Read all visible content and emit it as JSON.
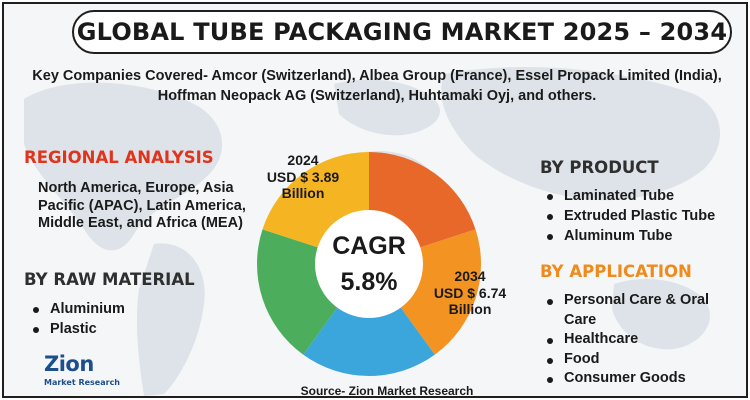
{
  "title": "GLOBAL TUBE PACKAGING MARKET 2025 – 2034",
  "companies": {
    "line1": "Key Companies Covered- Amcor (Switzerland), Albea Group (France), Essel Propack Limited (India),",
    "line2": "Hoffman Neopack AG (Switzerland), Huhtamaki Oyj, and others."
  },
  "regional": {
    "heading": "REGIONAL ANALYSIS",
    "text": "North America, Europe, Asia Pacific (APAC), Latin America, Middle East, and Africa (MEA)"
  },
  "raw_material": {
    "heading": "BY RAW MATERIAL",
    "items": [
      "Aluminium",
      "Plastic"
    ]
  },
  "product": {
    "heading": "BY PRODUCT",
    "items": [
      "Laminated Tube",
      "Extruded Plastic Tube",
      "Aluminum Tube"
    ]
  },
  "application": {
    "heading": "BY APPLICATION",
    "items": [
      "Personal Care & Oral Care",
      "Healthcare",
      "Food",
      "Consumer Goods"
    ]
  },
  "source": "Source- Zion Market Research",
  "logo": {
    "name": "Zion",
    "tagline": "Market Research"
  },
  "colors": {
    "red_heading": "#e0341c",
    "orange_heading": "#f08a1a",
    "slices": [
      "#e8682a",
      "#f29322",
      "#3aa6dc",
      "#4cae5c",
      "#f5b523"
    ]
  },
  "chart_data": {
    "type": "pie",
    "title": "",
    "slices": [
      {
        "value": 20,
        "color": "#e8682a"
      },
      {
        "value": 20,
        "color": "#f29322"
      },
      {
        "value": 20,
        "color": "#3aa6dc"
      },
      {
        "value": 20,
        "color": "#4cae5c"
      },
      {
        "value": 20,
        "color": "#f5b523"
      }
    ],
    "center_label": {
      "line1": "CAGR",
      "line2": "5.8%"
    },
    "annotations": [
      {
        "year": "2024",
        "amount": "USD $ 3.89",
        "unit": "Billion"
      },
      {
        "year": "2034",
        "amount": "USD $ 6.74",
        "unit": "Billion"
      }
    ]
  }
}
